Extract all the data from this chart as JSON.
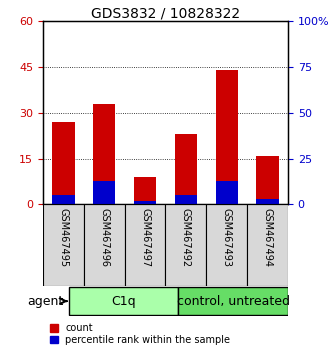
{
  "title": "GDS3832 / 10828322",
  "samples": [
    "GSM467495",
    "GSM467496",
    "GSM467497",
    "GSM467492",
    "GSM467493",
    "GSM467494"
  ],
  "count_values": [
    27,
    33,
    9,
    23,
    44,
    16
  ],
  "percentile_values": [
    5,
    13,
    2,
    5,
    13,
    3
  ],
  "groups": [
    {
      "label": "C1q",
      "indices": [
        0,
        1,
        2
      ],
      "color": "#aaffaa"
    },
    {
      "label": "control, untreated",
      "indices": [
        3,
        4,
        5
      ],
      "color": "#66dd66"
    }
  ],
  "ylim_left": [
    0,
    60
  ],
  "ylim_right": [
    0,
    100
  ],
  "yticks_left": [
    0,
    15,
    30,
    45,
    60
  ],
  "ytick_labels_left": [
    "0",
    "15",
    "30",
    "45",
    "60"
  ],
  "yticks_right": [
    0,
    25,
    50,
    75,
    100
  ],
  "ytick_labels_right": [
    "0",
    "25",
    "50",
    "75",
    "100%"
  ],
  "grid_values": [
    15,
    30,
    45
  ],
  "bar_color_count": "#cc0000",
  "bar_color_percentile": "#0000cc",
  "bar_width": 0.55,
  "agent_label": "agent",
  "legend_count": "count",
  "legend_percentile": "percentile rank within the sample",
  "bg_color": "#d8d8d8",
  "plot_bg": "#ffffff",
  "left_tick_color": "#cc0000",
  "right_tick_color": "#0000cc",
  "title_fontsize": 10,
  "axis_fontsize": 8,
  "sample_fontsize": 7,
  "legend_fontsize": 7,
  "group_fontsize": 9
}
